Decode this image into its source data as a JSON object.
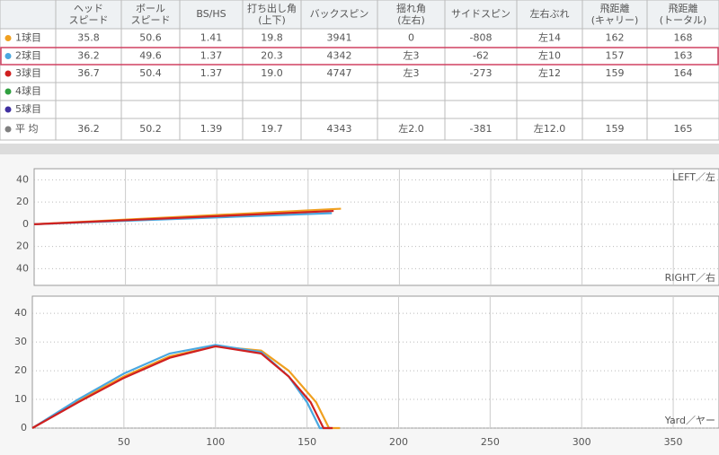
{
  "table": {
    "columns": [
      [
        "ヘッド",
        "スピード"
      ],
      [
        "ボール",
        "スピード"
      ],
      [
        "BS/HS"
      ],
      [
        "打ち出し角",
        "(上下)"
      ],
      [
        "バックスピン"
      ],
      [
        "揺れ角",
        "(左右)"
      ],
      [
        "サイドスピン"
      ],
      [
        "左右ぶれ"
      ],
      [
        "飛距離",
        "(キャリー)"
      ],
      [
        "飛距離",
        "(トータル)"
      ]
    ],
    "rows": [
      {
        "label": "1球目",
        "color": "#f0a020",
        "cells": [
          "35.8",
          "50.6",
          "1.41",
          "19.8",
          "3941",
          "0",
          "-808",
          "左14",
          "162",
          "168"
        ]
      },
      {
        "label": "2球目",
        "color": "#4aa8e0",
        "cells": [
          "36.2",
          "49.6",
          "1.37",
          "20.3",
          "4342",
          "左3",
          "-62",
          "左10",
          "157",
          "163"
        ]
      },
      {
        "label": "3球目",
        "color": "#d02020",
        "cells": [
          "36.7",
          "50.4",
          "1.37",
          "19.0",
          "4747",
          "左3",
          "-273",
          "左12",
          "159",
          "164"
        ]
      },
      {
        "label": "4球目",
        "color": "#30a040",
        "cells": [
          null,
          null,
          null,
          null,
          null,
          null,
          null,
          null,
          null,
          null
        ]
      },
      {
        "label": "5球目",
        "color": "#4030a0",
        "cells": [
          null,
          null,
          null,
          null,
          null,
          null,
          null,
          null,
          null,
          null
        ]
      },
      {
        "label": "平 均",
        "color": "#808080",
        "cells": [
          "36.2",
          "50.2",
          "1.39",
          "19.7",
          "4343",
          "左2.0",
          "-381",
          "左12.0",
          "159",
          "165"
        ]
      }
    ],
    "highlight_row": 1
  },
  "chart_data": [
    {
      "type": "line",
      "xlim": [
        0,
        375
      ],
      "ylim": [
        -55,
        50
      ],
      "yticks": [
        40,
        20,
        0,
        {
          "value": -20,
          "label": "20"
        },
        {
          "value": -40,
          "label": "40"
        }
      ],
      "grid": true,
      "top_label": "LEFT／左",
      "bottom_label": "RIGHT／右",
      "series": [
        {
          "name": "1球目",
          "color": "#f0a020",
          "x": [
            0,
            168
          ],
          "values": [
            0,
            14
          ]
        },
        {
          "name": "2球目",
          "color": "#4aa8e0",
          "x": [
            0,
            163
          ],
          "values": [
            0,
            10
          ]
        },
        {
          "name": "3球目",
          "color": "#d02020",
          "x": [
            0,
            164
          ],
          "values": [
            0,
            12
          ]
        }
      ]
    },
    {
      "type": "line",
      "xlim": [
        0,
        375
      ],
      "ylim": [
        0,
        46
      ],
      "xticks": [
        50,
        100,
        150,
        200,
        250,
        300,
        350
      ],
      "yticks": [
        0,
        10,
        20,
        30,
        40
      ],
      "grid": true,
      "x_label": "Yard／ヤー",
      "series": [
        {
          "name": "1球目",
          "color": "#f0a020",
          "x": [
            0,
            25,
            50,
            75,
            100,
            125,
            140,
            155,
            162,
            168
          ],
          "values": [
            0,
            9.5,
            18,
            25,
            28.5,
            27,
            20,
            9,
            0,
            0
          ]
        },
        {
          "name": "2球目",
          "color": "#4aa8e0",
          "x": [
            0,
            25,
            50,
            75,
            100,
            125,
            140,
            150,
            157,
            163
          ],
          "values": [
            0,
            10,
            19,
            26,
            29,
            26.5,
            18,
            9,
            0,
            0
          ]
        },
        {
          "name": "3球目",
          "color": "#d02020",
          "x": [
            0,
            25,
            50,
            75,
            100,
            125,
            140,
            152,
            159,
            164
          ],
          "values": [
            0,
            9,
            17.5,
            24.5,
            28.5,
            26,
            18,
            9,
            0,
            0
          ]
        }
      ]
    }
  ]
}
